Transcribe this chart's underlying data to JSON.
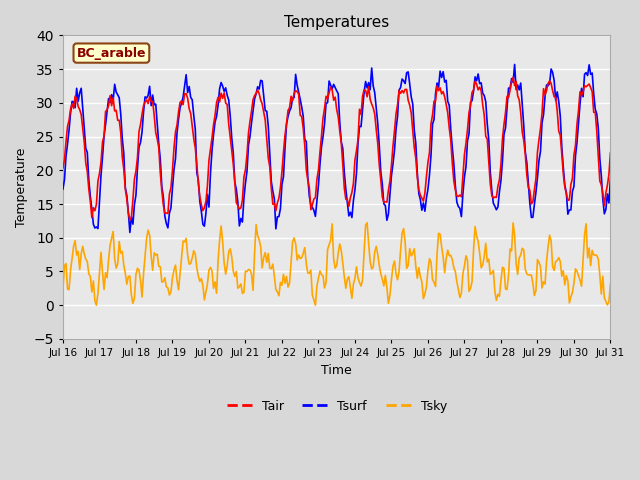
{
  "title": "Temperatures",
  "xlabel": "Time",
  "ylabel": "Temperature",
  "xlim": [
    0,
    360
  ],
  "ylim": [
    -5,
    40
  ],
  "yticks": [
    -5,
    0,
    5,
    10,
    15,
    20,
    25,
    30,
    35,
    40
  ],
  "xtick_labels": [
    "Jul 16",
    "Jul 17",
    "Jul 18",
    "Jul 19",
    "Jul 20",
    "Jul 21",
    "Jul 22",
    "Jul 23",
    "Jul 24",
    "Jul 25",
    "Jul 26",
    "Jul 27",
    "Jul 28",
    "Jul 29",
    "Jul 30",
    "Jul 31"
  ],
  "xtick_positions": [
    0,
    24,
    48,
    72,
    96,
    120,
    144,
    168,
    192,
    216,
    240,
    264,
    288,
    312,
    336,
    360
  ],
  "legend_labels": [
    "Tair",
    "Tsurf",
    "Tsky"
  ],
  "annotation_text": "BC_arable",
  "annotation_color": "#8B0000",
  "annotation_bg": "#FFFFCC",
  "annotation_border": "#8B4513",
  "tair_color": "red",
  "tsurf_color": "blue",
  "tsky_color": "orange",
  "line_width": 1.2,
  "figsize": [
    6.4,
    4.8
  ],
  "dpi": 100
}
